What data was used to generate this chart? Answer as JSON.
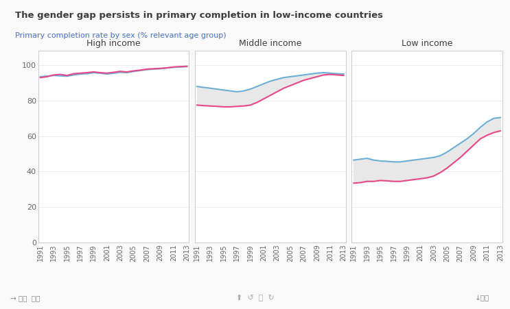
{
  "title": "The gender gap persists in primary completion in low-income countries",
  "subtitle": "Primary completion rate by sex (% relevant age group)",
  "title_color": "#3d3d3d",
  "subtitle_color": "#4472c4",
  "panel_titles": [
    "High income",
    "Middle income",
    "Low income"
  ],
  "years": [
    1991,
    1992,
    1993,
    1994,
    1995,
    1996,
    1997,
    1998,
    1999,
    2000,
    2001,
    2002,
    2003,
    2004,
    2005,
    2006,
    2007,
    2008,
    2009,
    2010,
    2011,
    2012,
    2013
  ],
  "high_male": [
    93.5,
    93.8,
    94.2,
    94.0,
    93.8,
    94.5,
    95.0,
    95.2,
    95.8,
    95.5,
    95.0,
    95.5,
    96.0,
    95.8,
    96.5,
    97.0,
    97.5,
    97.8,
    98.0,
    98.5,
    98.8,
    99.0,
    99.2
  ],
  "high_female": [
    93.0,
    93.5,
    94.5,
    94.8,
    94.2,
    95.2,
    95.5,
    95.8,
    96.2,
    95.8,
    95.5,
    96.0,
    96.5,
    96.2,
    96.8,
    97.2,
    97.8,
    98.0,
    98.2,
    98.5,
    99.0,
    99.2,
    99.4
  ],
  "mid_male": [
    88.0,
    87.5,
    87.0,
    86.5,
    86.0,
    85.5,
    85.0,
    85.5,
    86.5,
    88.0,
    89.5,
    91.0,
    92.0,
    93.0,
    93.5,
    94.0,
    94.5,
    95.0,
    95.5,
    95.8,
    95.5,
    95.2,
    95.0
  ],
  "mid_female": [
    77.5,
    77.2,
    77.0,
    76.8,
    76.5,
    76.5,
    76.8,
    77.0,
    77.5,
    79.0,
    81.0,
    83.0,
    85.0,
    87.0,
    88.5,
    90.0,
    91.5,
    92.5,
    93.5,
    94.5,
    94.8,
    94.5,
    94.2
  ],
  "low_male": [
    46.5,
    47.0,
    47.5,
    46.5,
    46.0,
    45.8,
    45.5,
    45.5,
    46.0,
    46.5,
    47.0,
    47.5,
    48.0,
    49.0,
    51.0,
    53.5,
    56.0,
    58.5,
    61.5,
    65.0,
    68.0,
    70.0,
    70.5
  ],
  "low_female": [
    33.5,
    33.8,
    34.5,
    34.5,
    35.0,
    34.8,
    34.5,
    34.5,
    35.0,
    35.5,
    36.0,
    36.5,
    37.5,
    39.5,
    42.0,
    45.0,
    48.0,
    51.5,
    55.0,
    58.5,
    60.5,
    62.0,
    63.0
  ],
  "male_color": "#6baed6",
  "female_color": "#e8488a",
  "fill_color": "#e8e8e8",
  "background_color": "#f9f9f9",
  "panel_bg": "#ffffff",
  "border_color": "#cccccc",
  "ylim": [
    0,
    108
  ],
  "yticks": [
    0,
    20,
    40,
    60,
    80,
    100
  ],
  "tick_years": [
    1991,
    1993,
    1995,
    1997,
    1999,
    2001,
    2003,
    2005,
    2007,
    2009,
    2011,
    2013
  ],
  "footer_left": "→ 共享  编辑",
  "footer_right": "↓下载"
}
